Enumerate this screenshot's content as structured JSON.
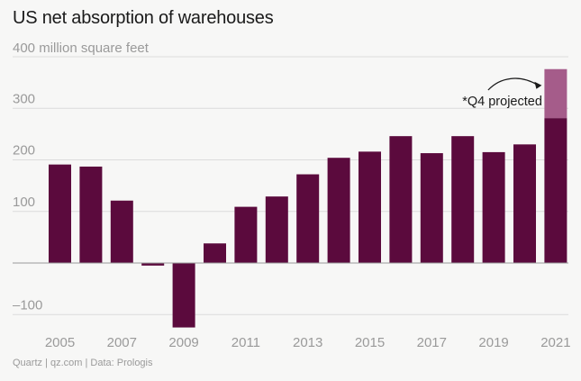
{
  "chart_data": {
    "type": "bar",
    "title": "US net absorption of warehouses",
    "ylabel": "400 million square feet",
    "xlabel": "",
    "ylim": [
      -130,
      400
    ],
    "yticks": [
      {
        "value": 300,
        "label": "300"
      },
      {
        "value": 200,
        "label": "200"
      },
      {
        "value": 100,
        "label": "100"
      },
      {
        "value": -100,
        "label": "–100"
      }
    ],
    "categories": [
      "2005",
      "2006",
      "2007",
      "2008",
      "2009",
      "2010",
      "2011",
      "2012",
      "2013",
      "2014",
      "2015",
      "2016",
      "2017",
      "2018",
      "2019",
      "2020",
      "2021"
    ],
    "xtick_labels": [
      "2005",
      "2007",
      "2009",
      "2011",
      "2013",
      "2015",
      "2017",
      "2019",
      "2021"
    ],
    "series": [
      {
        "name": "Net absorption",
        "color": "#5b0a3d",
        "values": [
          191,
          187,
          121,
          -5,
          -125,
          38,
          109,
          129,
          172,
          204,
          216,
          246,
          213,
          246,
          215,
          230,
          281
        ]
      },
      {
        "name": "Q4 projected",
        "color": "#a55c8a",
        "values": [
          0,
          0,
          0,
          0,
          0,
          0,
          0,
          0,
          0,
          0,
          0,
          0,
          0,
          0,
          0,
          0,
          95
        ]
      }
    ],
    "annotation": {
      "text": "*Q4 projected",
      "category": "2021"
    },
    "grid": true
  },
  "source": "Quartz | qz.com | Data: Prologis"
}
